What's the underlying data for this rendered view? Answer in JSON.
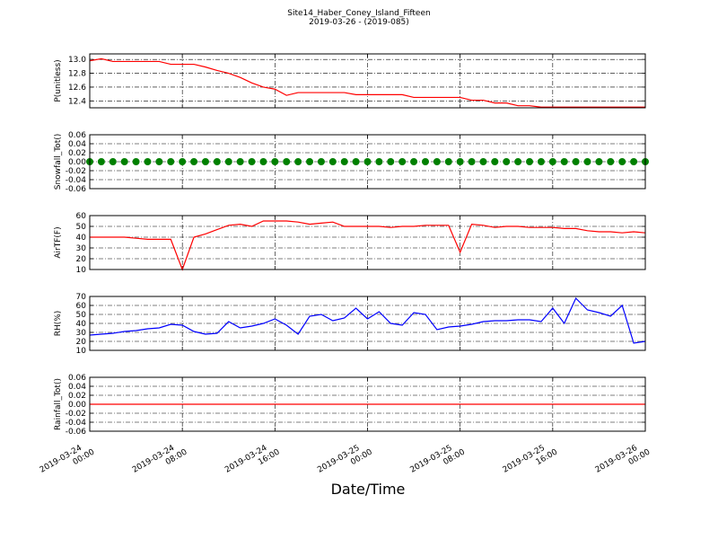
{
  "title": "Site14_Haber_Coney_Island_Fifteen",
  "subtitle": "2019-03-26 - (2019-085)",
  "x_label": "Date/Time",
  "x": [
    "2019-03-24 00:00",
    "2019-03-24 01:00",
    "2019-03-24 02:00",
    "2019-03-24 03:00",
    "2019-03-24 04:00",
    "2019-03-24 05:00",
    "2019-03-24 06:00",
    "2019-03-24 07:00",
    "2019-03-24 08:00",
    "2019-03-24 09:00",
    "2019-03-24 10:00",
    "2019-03-24 11:00",
    "2019-03-24 12:00",
    "2019-03-24 13:00",
    "2019-03-24 14:00",
    "2019-03-24 15:00",
    "2019-03-24 16:00",
    "2019-03-24 17:00",
    "2019-03-24 18:00",
    "2019-03-24 19:00",
    "2019-03-24 20:00",
    "2019-03-24 21:00",
    "2019-03-24 22:00",
    "2019-03-24 23:00",
    "2019-03-25 00:00",
    "2019-03-25 01:00",
    "2019-03-25 02:00",
    "2019-03-25 03:00",
    "2019-03-25 04:00",
    "2019-03-25 05:00",
    "2019-03-25 06:00",
    "2019-03-25 07:00",
    "2019-03-25 08:00",
    "2019-03-25 09:00",
    "2019-03-25 10:00",
    "2019-03-25 11:00",
    "2019-03-25 12:00",
    "2019-03-25 13:00",
    "2019-03-25 14:00",
    "2019-03-25 15:00",
    "2019-03-25 16:00",
    "2019-03-25 17:00",
    "2019-03-25 18:00",
    "2019-03-25 19:00",
    "2019-03-25 20:00",
    "2019-03-25 21:00",
    "2019-03-25 22:00",
    "2019-03-25 23:00",
    "2019-03-26 00:00"
  ],
  "xlim": [
    "2019-03-24 00:00",
    "2019-03-26 00:00"
  ],
  "xticks": [
    "2019-03-24 00:00",
    "2019-03-24 08:00",
    "2019-03-24 16:00",
    "2019-03-25 00:00",
    "2019-03-25 08:00",
    "2019-03-25 16:00",
    "2019-03-26 00:00"
  ],
  "grid": true,
  "chart_data": [
    {
      "type": "line",
      "y_label": "P(unitless)",
      "color": "#ff0000",
      "values": [
        12.98,
        13.01,
        12.97,
        12.97,
        12.97,
        12.97,
        12.97,
        12.93,
        12.93,
        12.93,
        12.89,
        12.84,
        12.8,
        12.74,
        12.66,
        12.6,
        12.57,
        12.48,
        12.52,
        12.52,
        12.52,
        12.52,
        12.52,
        12.49,
        12.49,
        12.49,
        12.49,
        12.49,
        12.45,
        12.45,
        12.45,
        12.45,
        12.45,
        12.41,
        12.41,
        12.37,
        12.37,
        12.33,
        12.33,
        12.31,
        12.31,
        12.31,
        12.31,
        12.31,
        12.31,
        12.31,
        12.31,
        12.31,
        12.31
      ],
      "ylim": [
        12.3,
        13.08
      ],
      "yticks": [
        12.4,
        12.6,
        12.8,
        {
          "value": 13,
          "label": "13.0"
        }
      ]
    },
    {
      "type": "scatter",
      "y_label": "Snowfall_Tot()",
      "color": "#008000",
      "values": [
        0,
        0,
        0,
        0,
        0,
        0,
        0,
        0,
        0,
        0,
        0,
        0,
        0,
        0,
        0,
        0,
        0,
        0,
        0,
        0,
        0,
        0,
        0,
        0,
        0,
        0,
        0,
        0,
        0,
        0,
        0,
        0,
        0,
        0,
        0,
        0,
        0,
        0,
        0,
        0,
        0,
        0,
        0,
        0,
        0,
        0,
        0,
        0,
        0
      ],
      "ylim": [
        -0.06,
        0.06
      ],
      "yticks": [
        -0.06,
        -0.04,
        -0.02,
        {
          "value": 0,
          "label": "0.00"
        },
        0.02,
        0.04,
        0.06
      ]
    },
    {
      "type": "line",
      "y_label": "AirTF(F)",
      "color": "#ff0000",
      "values": [
        40,
        40,
        40,
        40,
        39,
        38,
        38,
        38,
        10,
        40,
        43,
        47,
        51,
        52,
        50,
        55,
        55,
        55,
        54,
        52,
        53,
        54,
        50,
        50,
        50,
        50,
        49,
        50,
        50,
        51,
        51,
        51,
        26,
        52,
        51,
        49,
        50,
        50,
        49,
        49,
        49,
        48,
        48,
        46,
        45,
        45,
        44,
        45,
        44
      ],
      "ylim": [
        10,
        60
      ],
      "yticks": [
        10,
        20,
        30,
        40,
        50,
        60
      ]
    },
    {
      "type": "line",
      "y_label": "RH(%)",
      "color": "#0000ff",
      "values": [
        27,
        28,
        29,
        31,
        32,
        34,
        35,
        39,
        38,
        31,
        28,
        29,
        42,
        35,
        37,
        40,
        45,
        38,
        28,
        48,
        50,
        43,
        46,
        57,
        45,
        53,
        40,
        38,
        52,
        50,
        33,
        36,
        37,
        39,
        42,
        43,
        43,
        44,
        44,
        42,
        57,
        40,
        68,
        55,
        52,
        48,
        60,
        18,
        20
      ],
      "ylim": [
        10,
        70
      ],
      "yticks": [
        10,
        20,
        30,
        40,
        50,
        60,
        70
      ]
    },
    {
      "type": "line",
      "y_label": "Rainfall_Tot()",
      "color": "#ff0000",
      "values": [
        0,
        0,
        0,
        0,
        0,
        0,
        0,
        0,
        0,
        0,
        0,
        0,
        0,
        0,
        0,
        0,
        0,
        0,
        0,
        0,
        0,
        0,
        0,
        0,
        0,
        0,
        0,
        0,
        0,
        0,
        0,
        0,
        0,
        0,
        0,
        0,
        0,
        0,
        0,
        0,
        0,
        0,
        0,
        0,
        0,
        0,
        0,
        0,
        0
      ],
      "ylim": [
        -0.06,
        0.06
      ],
      "yticks": [
        -0.06,
        -0.04,
        -0.02,
        {
          "value": 0,
          "label": "0.00"
        },
        0.02,
        0.04,
        0.06
      ]
    }
  ]
}
